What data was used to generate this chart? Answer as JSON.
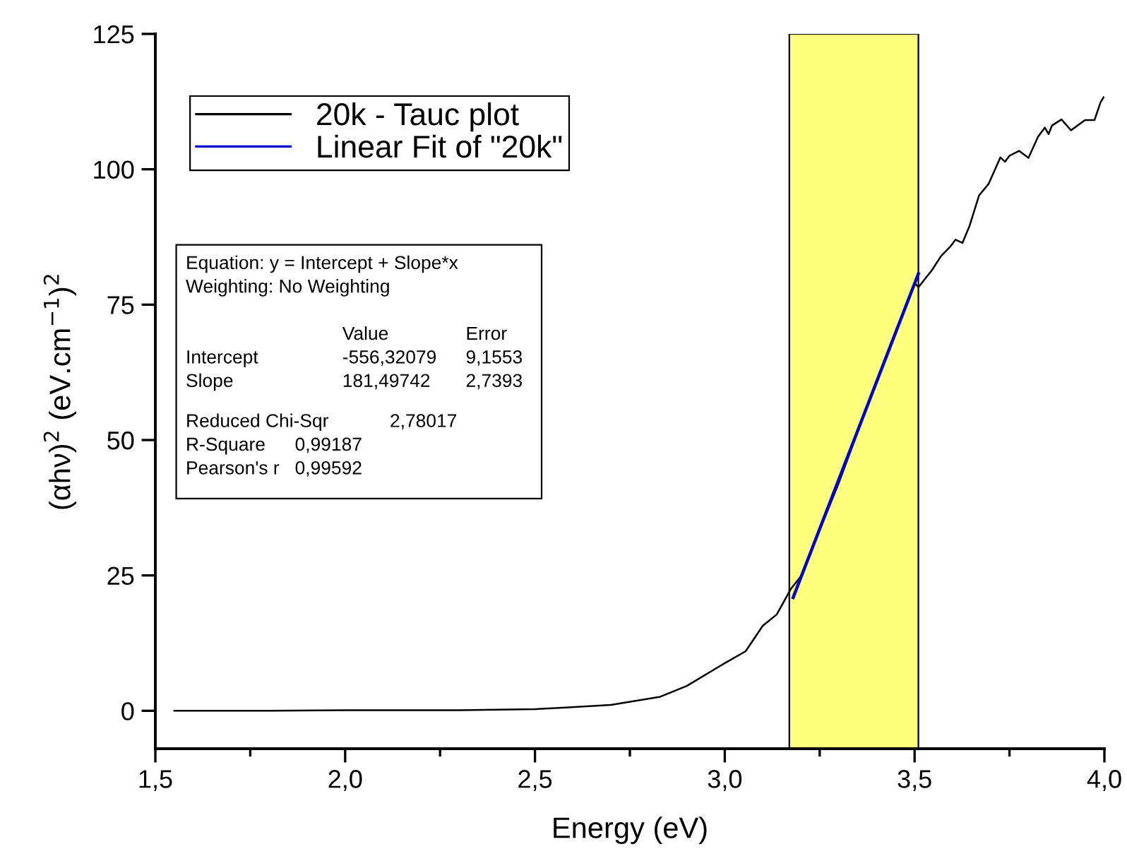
{
  "chart_data": {
    "type": "line",
    "xlabel": "Energy (eV)",
    "ylabel": "(αhν)$^{2}$ (eV.cm$^{−1}$)$^{2}$",
    "series": [
      {
        "name": "20k - Tauc plot",
        "color": "#000000",
        "x": [
          1.55,
          1.8,
          2.0,
          2.3,
          2.5,
          2.58,
          2.7,
          2.83,
          2.9,
          3.0,
          3.055,
          3.1,
          3.137,
          3.174,
          3.2,
          3.3,
          3.4,
          3.5,
          3.51,
          3.546,
          3.57,
          3.595,
          3.608,
          3.626,
          3.645,
          3.67,
          3.695,
          3.726,
          3.738,
          3.75,
          3.775,
          3.8,
          3.825,
          3.843,
          3.853,
          3.862,
          3.887,
          3.912,
          3.949,
          3.974,
          3.99,
          3.998
        ],
        "values": [
          0,
          0,
          0.1,
          0.1,
          0.3,
          0.6,
          1.1,
          2.6,
          4.6,
          8.8,
          11,
          15.7,
          17.8,
          22.5,
          24.8,
          42,
          61,
          79,
          78.2,
          81.4,
          84,
          85.8,
          87,
          86.4,
          89.6,
          95.2,
          97.3,
          102.2,
          101.4,
          102.5,
          103.4,
          102.1,
          106,
          107.7,
          106.5,
          108.1,
          109.2,
          107.2,
          109.1,
          109.1,
          112.4,
          113.3
        ]
      },
      {
        "name": "Linear Fit of \"20k\"",
        "color": "#0000cc",
        "x": [
          3.18,
          3.51
        ],
        "values": [
          20.9,
          80.7
        ]
      }
    ],
    "xlim": [
      1.5,
      4.0
    ],
    "xticks": [
      {
        "value": 1.5,
        "label": "1,5"
      },
      {
        "value": 2.0,
        "label": "2,0"
      },
      {
        "value": 2.5,
        "label": "2,5"
      },
      {
        "value": 3.0,
        "label": "3,0"
      },
      {
        "value": 3.5,
        "label": "3,5"
      },
      {
        "value": 4.0,
        "label": "4,0"
      }
    ],
    "ylim": [
      -7,
      125
    ],
    "yticks": [
      0,
      25,
      50,
      75,
      100,
      125
    ],
    "bands": [
      {
        "axis": "x",
        "from": 3.17,
        "to": 3.51,
        "color": "#ffff80"
      }
    ],
    "legend": "top left",
    "grid": false,
    "annotations": [
      "Equation: y = Intercept + Slope*x",
      "Weighting: No Weighting",
      "Value",
      "Error",
      "Intercept",
      "-556,32079",
      "9,1553",
      "Slope",
      "181,49742",
      "2,7393",
      "Reduced Chi-Sqr",
      "2,78017",
      "R-Square",
      "0,99187",
      "Pearson's r",
      "0,99592"
    ]
  }
}
